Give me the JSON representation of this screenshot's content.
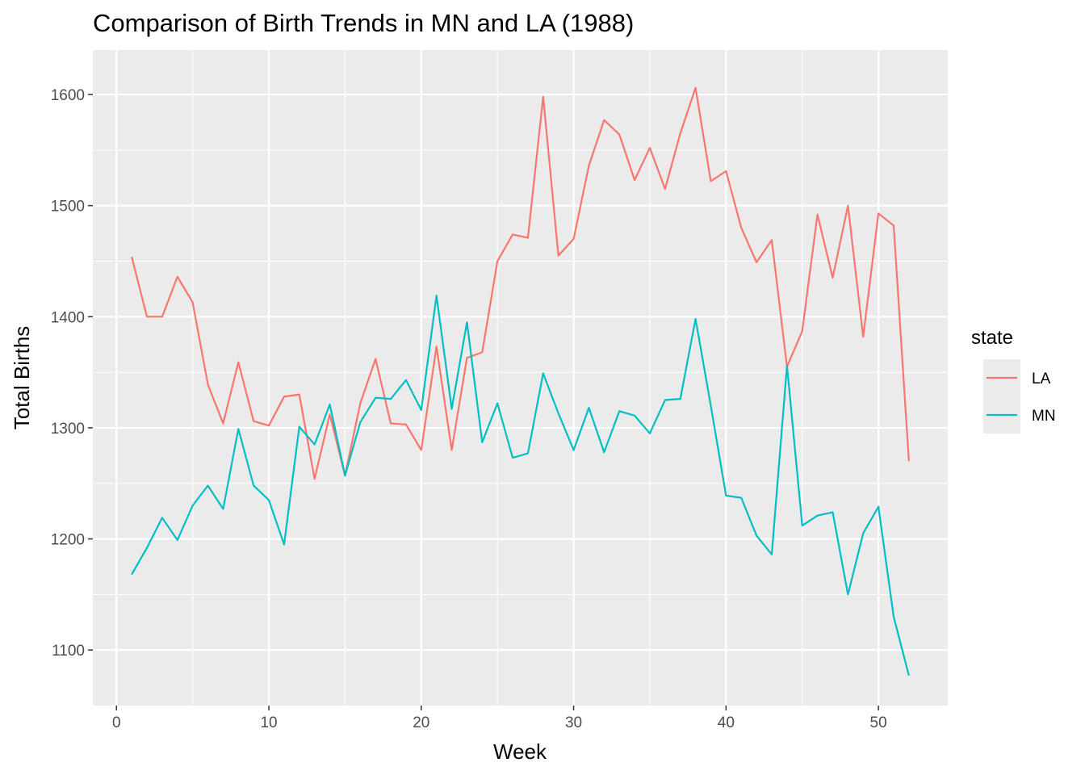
{
  "chart_data": {
    "type": "line",
    "title": "Comparison of Birth Trends in MN and LA (1988)",
    "xlabel": "Week",
    "ylabel": "Total Births",
    "xlim": [
      -1.55,
      54.55
    ],
    "ylim": [
      1050,
      1640
    ],
    "x_ticks": [
      0,
      10,
      20,
      30,
      40,
      50
    ],
    "x_minor": [
      5,
      15,
      25,
      35,
      45
    ],
    "y_ticks": [
      1100,
      1200,
      1300,
      1400,
      1500,
      1600
    ],
    "y_minor": [
      1150,
      1250,
      1350,
      1450,
      1550
    ],
    "grid": true,
    "legend": {
      "title": "state",
      "position": "right"
    },
    "x": [
      1,
      2,
      3,
      4,
      5,
      6,
      7,
      8,
      9,
      10,
      11,
      12,
      13,
      14,
      15,
      16,
      17,
      18,
      19,
      20,
      21,
      22,
      23,
      24,
      25,
      26,
      27,
      28,
      29,
      30,
      31,
      32,
      33,
      34,
      35,
      36,
      37,
      38,
      39,
      40,
      41,
      42,
      43,
      44,
      45,
      46,
      47,
      48,
      49,
      50,
      51,
      52
    ],
    "series": [
      {
        "name": "LA",
        "color": "#F8766D",
        "values": [
          1454,
          1400,
          1400,
          1436,
          1413,
          1339,
          1304,
          1359,
          1306,
          1302,
          1328,
          1330,
          1254,
          1312,
          1257,
          1322,
          1362,
          1304,
          1303,
          1280,
          1373,
          1280,
          1363,
          1368,
          1450,
          1474,
          1471,
          1598,
          1455,
          1470,
          1536,
          1577,
          1564,
          1523,
          1552,
          1515,
          1565,
          1606,
          1522,
          1531,
          1480,
          1449,
          1469,
          1355,
          1387,
          1492,
          1435,
          1500,
          1382,
          1493,
          1482,
          1270
        ]
      },
      {
        "name": "MN",
        "color": "#00BFC4",
        "values": [
          1168,
          1192,
          1219,
          1199,
          1230,
          1248,
          1227,
          1299,
          1248,
          1235,
          1195,
          1301,
          1285,
          1321,
          1257,
          1305,
          1327,
          1326,
          1343,
          1316,
          1419,
          1317,
          1395,
          1287,
          1322,
          1273,
          1277,
          1349,
          1313,
          1280,
          1318,
          1278,
          1315,
          1311,
          1295,
          1325,
          1326,
          1398,
          1320,
          1239,
          1237,
          1203,
          1186,
          1356,
          1212,
          1221,
          1224,
          1150,
          1205,
          1229,
          1130,
          1077
        ]
      }
    ]
  }
}
